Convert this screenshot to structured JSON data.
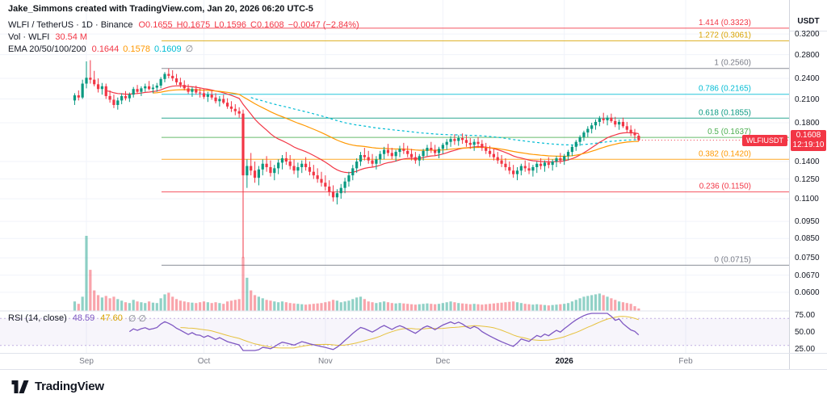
{
  "attribution": "Jake_Simmons created with TradingView.com, Jan 20, 2026 06:20 UTC-5",
  "symbol_row": {
    "title": "WLFI / TetherUS · 1D · Binance",
    "ohlc_tokens": [
      "O0.1655",
      "H0.1675",
      "L0.1596",
      "C0.1608",
      "−0.0047 (−2.84%)"
    ]
  },
  "volume_row": {
    "label": "Vol · WLFI",
    "value": "30.54 M"
  },
  "ema_row": {
    "label": "EMA 20/50/100/200",
    "values": [
      "0.1644",
      "0.1578",
      "0.1609",
      "∅"
    ]
  },
  "rsi_row": {
    "label": "RSI (14, close)",
    "value": "48.59",
    "ma_value": "47.60",
    "hidden": "∅ ∅"
  },
  "price_axis": {
    "currency": "USDT",
    "ticks": [
      {
        "label": "0.3200",
        "value": 0.32
      },
      {
        "label": "0.2800",
        "value": 0.28
      },
      {
        "label": "0.2400",
        "value": 0.24
      },
      {
        "label": "0.2100",
        "value": 0.21
      },
      {
        "label": "0.1800",
        "value": 0.18
      },
      {
        "label": "0.1400",
        "value": 0.14
      },
      {
        "label": "0.1250",
        "value": 0.125
      },
      {
        "label": "0.1100",
        "value": 0.11
      },
      {
        "label": "0.0950",
        "value": 0.095
      },
      {
        "label": "0.0850",
        "value": 0.085
      },
      {
        "label": "0.0750",
        "value": 0.075
      },
      {
        "label": "0.0670",
        "value": 0.067
      },
      {
        "label": "0.0600",
        "value": 0.06
      }
    ],
    "badge": {
      "price": "0.1608",
      "countdown": "12:19:10"
    },
    "symbol_tag": "WLFIUSDT"
  },
  "rsi_axis": {
    "ticks": [
      {
        "label": "75.00",
        "value": 75
      },
      {
        "label": "50.00",
        "value": 50
      },
      {
        "label": "25.00",
        "value": 25
      }
    ]
  },
  "time_axis": {
    "months": [
      {
        "label": "Sep",
        "day": 0
      },
      {
        "label": "Oct",
        "day": 30
      },
      {
        "label": "Nov",
        "day": 61
      },
      {
        "label": "Dec",
        "day": 91
      },
      {
        "label": "2026",
        "day": 122,
        "bold": true
      },
      {
        "label": "Feb",
        "day": 153
      }
    ]
  },
  "footer": {
    "brand": "TradingView"
  },
  "chart_data": {
    "type": "candlestick",
    "title": "WLFI / TetherUS · 1D · Binance",
    "interval": "1D",
    "scale": "log",
    "start_date": "2025-08-29",
    "end_date": "2026-01-20",
    "price_range_visible": [
      0.057,
      0.34
    ],
    "volume_max": 950,
    "colors": {
      "up": "#089981",
      "down": "#f23645",
      "ema20": "#f23645",
      "ema50": "#ff9800",
      "ema100": "#00bcd4",
      "rsi": "#7e57c2",
      "rsi_ma": "#e6c13d",
      "badge": "#f23645"
    },
    "indicators": {
      "ema_periods": [
        20,
        50,
        100,
        200
      ],
      "rsi_period": 14
    },
    "fib_levels": [
      {
        "label": "1.414 (0.3323)",
        "price": 0.3323,
        "color": "#f23645"
      },
      {
        "label": "1.272 (0.3061)",
        "price": 0.3061,
        "color": "#d9a300"
      },
      {
        "label": "1 (0.2560)",
        "price": 0.256,
        "color": "#787b86"
      },
      {
        "label": "0.786 (0.2165)",
        "price": 0.2165,
        "color": "#00bcd4"
      },
      {
        "label": "0.618 (0.1855)",
        "price": 0.1855,
        "color": "#089981"
      },
      {
        "label": "0.5 (0.1637)",
        "price": 0.1637,
        "color": "#4caf50"
      },
      {
        "label": "0.382 (0.1420)",
        "price": 0.142,
        "color": "#ff9800"
      },
      {
        "label": "0.236 (0.1150)",
        "price": 0.115,
        "color": "#f23645"
      },
      {
        "label": "0 (0.0715)",
        "price": 0.0715,
        "color": "#787b86"
      }
    ],
    "last": {
      "open": 0.1655,
      "high": 0.1675,
      "low": 0.1596,
      "close": 0.1608,
      "change": -0.0047,
      "change_pct": -2.84,
      "volume_m": 30.54
    },
    "candles": [
      [
        0.208,
        0.218,
        0.202,
        0.215,
        120
      ],
      [
        0.215,
        0.222,
        0.208,
        0.212,
        90
      ],
      [
        0.212,
        0.238,
        0.21,
        0.232,
        180
      ],
      [
        0.232,
        0.268,
        0.225,
        0.241,
        950
      ],
      [
        0.241,
        0.27,
        0.232,
        0.238,
        520
      ],
      [
        0.238,
        0.252,
        0.228,
        0.231,
        260
      ],
      [
        0.231,
        0.24,
        0.219,
        0.224,
        200
      ],
      [
        0.224,
        0.233,
        0.216,
        0.228,
        170
      ],
      [
        0.228,
        0.232,
        0.21,
        0.214,
        190
      ],
      [
        0.214,
        0.222,
        0.205,
        0.209,
        160
      ],
      [
        0.209,
        0.216,
        0.198,
        0.202,
        180
      ],
      [
        0.202,
        0.212,
        0.196,
        0.208,
        150
      ],
      [
        0.208,
        0.218,
        0.203,
        0.214,
        130
      ],
      [
        0.214,
        0.221,
        0.208,
        0.211,
        110
      ],
      [
        0.211,
        0.219,
        0.206,
        0.216,
        100
      ],
      [
        0.216,
        0.227,
        0.212,
        0.224,
        140
      ],
      [
        0.224,
        0.23,
        0.217,
        0.22,
        120
      ],
      [
        0.22,
        0.228,
        0.214,
        0.225,
        110
      ],
      [
        0.225,
        0.232,
        0.22,
        0.228,
        100
      ],
      [
        0.228,
        0.236,
        0.222,
        0.224,
        120
      ],
      [
        0.224,
        0.231,
        0.218,
        0.226,
        105
      ],
      [
        0.226,
        0.233,
        0.22,
        0.229,
        100
      ],
      [
        0.229,
        0.242,
        0.225,
        0.239,
        160
      ],
      [
        0.239,
        0.25,
        0.234,
        0.247,
        210
      ],
      [
        0.247,
        0.256,
        0.24,
        0.244,
        230
      ],
      [
        0.244,
        0.253,
        0.236,
        0.24,
        180
      ],
      [
        0.24,
        0.247,
        0.23,
        0.234,
        150
      ],
      [
        0.234,
        0.241,
        0.226,
        0.23,
        130
      ],
      [
        0.23,
        0.237,
        0.222,
        0.225,
        120
      ],
      [
        0.225,
        0.231,
        0.217,
        0.22,
        110
      ],
      [
        0.22,
        0.227,
        0.213,
        0.224,
        105
      ],
      [
        0.224,
        0.229,
        0.216,
        0.219,
        100
      ],
      [
        0.219,
        0.225,
        0.212,
        0.218,
        110
      ],
      [
        0.218,
        0.224,
        0.21,
        0.213,
        120
      ],
      [
        0.213,
        0.22,
        0.206,
        0.216,
        110
      ],
      [
        0.216,
        0.222,
        0.209,
        0.212,
        100
      ],
      [
        0.212,
        0.218,
        0.204,
        0.207,
        110
      ],
      [
        0.207,
        0.214,
        0.2,
        0.21,
        100
      ],
      [
        0.21,
        0.216,
        0.203,
        0.205,
        90
      ],
      [
        0.205,
        0.211,
        0.197,
        0.2,
        120
      ],
      [
        0.2,
        0.207,
        0.193,
        0.197,
        130
      ],
      [
        0.197,
        0.203,
        0.189,
        0.194,
        140
      ],
      [
        0.194,
        0.199,
        0.186,
        0.191,
        150
      ],
      [
        0.191,
        0.196,
        0.075,
        0.128,
        680
      ],
      [
        0.128,
        0.142,
        0.118,
        0.136,
        420
      ],
      [
        0.136,
        0.148,
        0.128,
        0.132,
        260
      ],
      [
        0.132,
        0.14,
        0.122,
        0.126,
        200
      ],
      [
        0.126,
        0.136,
        0.12,
        0.133,
        180
      ],
      [
        0.133,
        0.142,
        0.128,
        0.138,
        160
      ],
      [
        0.138,
        0.145,
        0.131,
        0.135,
        140
      ],
      [
        0.135,
        0.141,
        0.127,
        0.13,
        130
      ],
      [
        0.13,
        0.137,
        0.124,
        0.134,
        120
      ],
      [
        0.134,
        0.142,
        0.129,
        0.139,
        110
      ],
      [
        0.139,
        0.146,
        0.133,
        0.143,
        120
      ],
      [
        0.143,
        0.149,
        0.137,
        0.14,
        110
      ],
      [
        0.14,
        0.146,
        0.133,
        0.136,
        100
      ],
      [
        0.136,
        0.142,
        0.129,
        0.132,
        95
      ],
      [
        0.132,
        0.139,
        0.126,
        0.135,
        90
      ],
      [
        0.135,
        0.141,
        0.13,
        0.138,
        85
      ],
      [
        0.138,
        0.144,
        0.132,
        0.135,
        80
      ],
      [
        0.135,
        0.14,
        0.128,
        0.131,
        85
      ],
      [
        0.131,
        0.137,
        0.125,
        0.128,
        90
      ],
      [
        0.128,
        0.134,
        0.122,
        0.125,
        95
      ],
      [
        0.125,
        0.131,
        0.119,
        0.122,
        100
      ],
      [
        0.122,
        0.128,
        0.116,
        0.119,
        110
      ],
      [
        0.119,
        0.124,
        0.112,
        0.115,
        120
      ],
      [
        0.115,
        0.12,
        0.108,
        0.111,
        140
      ],
      [
        0.111,
        0.117,
        0.106,
        0.114,
        130
      ],
      [
        0.114,
        0.121,
        0.11,
        0.118,
        110
      ],
      [
        0.118,
        0.126,
        0.114,
        0.123,
        120
      ],
      [
        0.123,
        0.131,
        0.119,
        0.128,
        130
      ],
      [
        0.128,
        0.137,
        0.124,
        0.134,
        150
      ],
      [
        0.134,
        0.143,
        0.13,
        0.14,
        170
      ],
      [
        0.14,
        0.149,
        0.136,
        0.146,
        180
      ],
      [
        0.146,
        0.153,
        0.141,
        0.144,
        150
      ],
      [
        0.144,
        0.15,
        0.138,
        0.141,
        120
      ],
      [
        0.141,
        0.147,
        0.135,
        0.138,
        110
      ],
      [
        0.138,
        0.145,
        0.133,
        0.142,
        100
      ],
      [
        0.142,
        0.15,
        0.138,
        0.147,
        110
      ],
      [
        0.147,
        0.154,
        0.142,
        0.151,
        120
      ],
      [
        0.151,
        0.157,
        0.145,
        0.148,
        110
      ],
      [
        0.148,
        0.153,
        0.142,
        0.145,
        100
      ],
      [
        0.145,
        0.151,
        0.14,
        0.149,
        95
      ],
      [
        0.149,
        0.155,
        0.144,
        0.152,
        100
      ],
      [
        0.152,
        0.158,
        0.147,
        0.15,
        95
      ],
      [
        0.15,
        0.155,
        0.144,
        0.147,
        90
      ],
      [
        0.147,
        0.152,
        0.141,
        0.144,
        85
      ],
      [
        0.144,
        0.149,
        0.138,
        0.141,
        80
      ],
      [
        0.141,
        0.147,
        0.136,
        0.145,
        85
      ],
      [
        0.145,
        0.152,
        0.141,
        0.15,
        90
      ],
      [
        0.15,
        0.156,
        0.145,
        0.153,
        95
      ],
      [
        0.153,
        0.159,
        0.148,
        0.151,
        90
      ],
      [
        0.151,
        0.156,
        0.145,
        0.148,
        85
      ],
      [
        0.148,
        0.154,
        0.143,
        0.152,
        90
      ],
      [
        0.152,
        0.158,
        0.147,
        0.156,
        100
      ],
      [
        0.156,
        0.162,
        0.151,
        0.159,
        110
      ],
      [
        0.159,
        0.165,
        0.154,
        0.162,
        120
      ],
      [
        0.162,
        0.167,
        0.156,
        0.16,
        110
      ],
      [
        0.16,
        0.166,
        0.155,
        0.163,
        100
      ],
      [
        0.163,
        0.168,
        0.157,
        0.161,
        95
      ],
      [
        0.161,
        0.166,
        0.154,
        0.158,
        90
      ],
      [
        0.158,
        0.163,
        0.152,
        0.156,
        85
      ],
      [
        0.156,
        0.162,
        0.15,
        0.159,
        90
      ],
      [
        0.159,
        0.164,
        0.153,
        0.157,
        85
      ],
      [
        0.157,
        0.161,
        0.15,
        0.153,
        80
      ],
      [
        0.153,
        0.158,
        0.147,
        0.15,
        85
      ],
      [
        0.15,
        0.155,
        0.144,
        0.147,
        90
      ],
      [
        0.147,
        0.152,
        0.141,
        0.144,
        95
      ],
      [
        0.144,
        0.149,
        0.138,
        0.141,
        100
      ],
      [
        0.141,
        0.146,
        0.135,
        0.138,
        105
      ],
      [
        0.138,
        0.143,
        0.132,
        0.135,
        110
      ],
      [
        0.135,
        0.14,
        0.129,
        0.132,
        115
      ],
      [
        0.132,
        0.137,
        0.126,
        0.129,
        120
      ],
      [
        0.129,
        0.135,
        0.124,
        0.132,
        110
      ],
      [
        0.132,
        0.138,
        0.128,
        0.136,
        100
      ],
      [
        0.136,
        0.141,
        0.131,
        0.134,
        90
      ],
      [
        0.134,
        0.139,
        0.129,
        0.132,
        85
      ],
      [
        0.132,
        0.137,
        0.127,
        0.135,
        80
      ],
      [
        0.135,
        0.14,
        0.13,
        0.138,
        85
      ],
      [
        0.138,
        0.143,
        0.133,
        0.136,
        80
      ],
      [
        0.136,
        0.141,
        0.131,
        0.139,
        75
      ],
      [
        0.139,
        0.144,
        0.134,
        0.137,
        70
      ],
      [
        0.137,
        0.142,
        0.132,
        0.14,
        75
      ],
      [
        0.14,
        0.145,
        0.135,
        0.143,
        80
      ],
      [
        0.143,
        0.148,
        0.138,
        0.141,
        85
      ],
      [
        0.141,
        0.147,
        0.137,
        0.145,
        90
      ],
      [
        0.145,
        0.151,
        0.141,
        0.149,
        100
      ],
      [
        0.149,
        0.156,
        0.145,
        0.154,
        120
      ],
      [
        0.154,
        0.161,
        0.15,
        0.159,
        140
      ],
      [
        0.159,
        0.166,
        0.155,
        0.164,
        160
      ],
      [
        0.164,
        0.171,
        0.16,
        0.169,
        180
      ],
      [
        0.169,
        0.176,
        0.164,
        0.173,
        190
      ],
      [
        0.173,
        0.18,
        0.168,
        0.177,
        200
      ],
      [
        0.177,
        0.184,
        0.172,
        0.181,
        210
      ],
      [
        0.181,
        0.188,
        0.176,
        0.185,
        220
      ],
      [
        0.185,
        0.192,
        0.179,
        0.183,
        200
      ],
      [
        0.183,
        0.189,
        0.177,
        0.186,
        180
      ],
      [
        0.186,
        0.191,
        0.18,
        0.182,
        160
      ],
      [
        0.182,
        0.187,
        0.175,
        0.178,
        140
      ],
      [
        0.178,
        0.184,
        0.172,
        0.181,
        120
      ],
      [
        0.181,
        0.186,
        0.174,
        0.176,
        110
      ],
      [
        0.176,
        0.181,
        0.169,
        0.172,
        100
      ],
      [
        0.172,
        0.177,
        0.165,
        0.168,
        90
      ],
      [
        0.168,
        0.173,
        0.162,
        0.166,
        60
      ],
      [
        0.1655,
        0.1675,
        0.1596,
        0.1608,
        30.54
      ]
    ]
  }
}
